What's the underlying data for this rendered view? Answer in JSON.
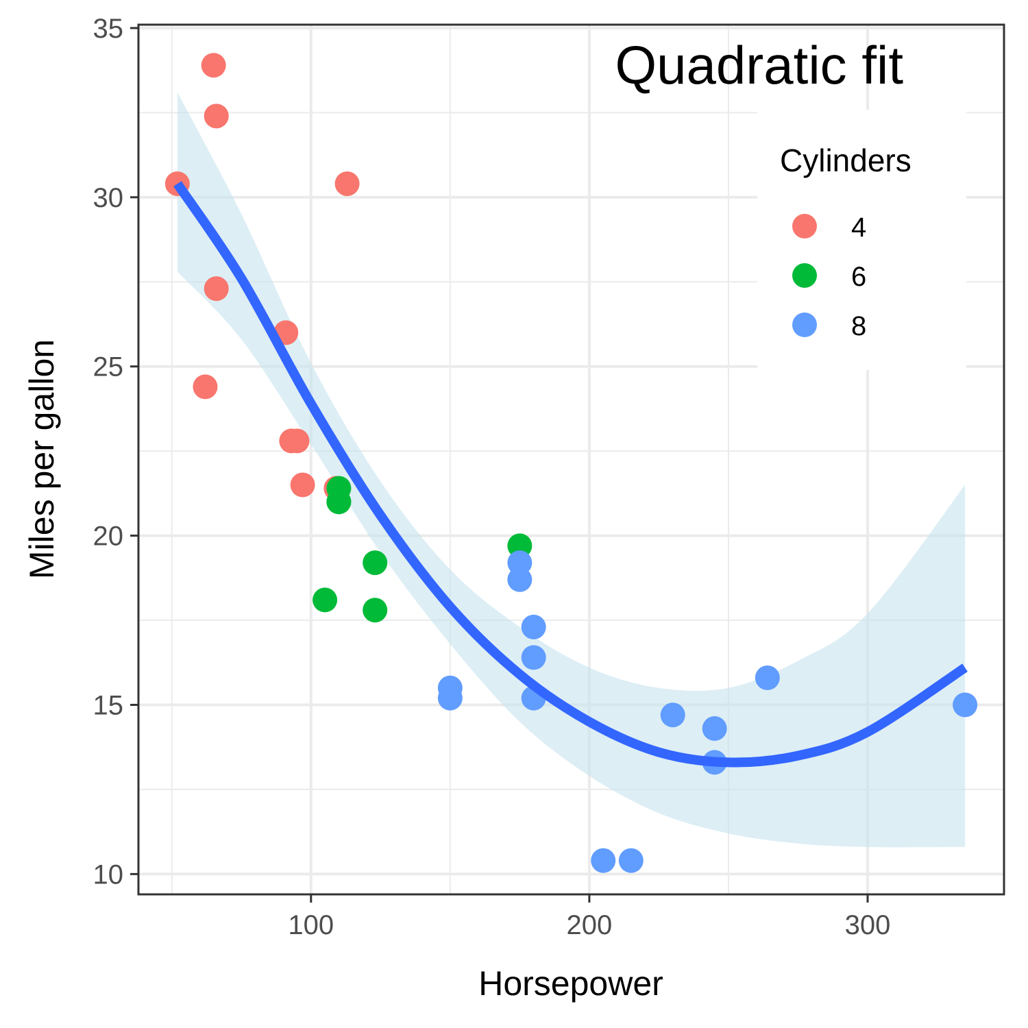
{
  "chart_data": {
    "type": "scatter",
    "title": "Quadratic fit",
    "xlabel": "Horsepower",
    "ylabel": "Miles per gallon",
    "xlim": [
      38,
      349
    ],
    "ylim": [
      9.4,
      35.1
    ],
    "xticks": [
      100,
      200,
      300
    ],
    "yticks": [
      10,
      15,
      20,
      25,
      30,
      35
    ],
    "grid": true,
    "legend": {
      "title": "Cylinders",
      "placement": "top-right inside",
      "entries": [
        {
          "label": "4",
          "color": "#F8766D"
        },
        {
          "label": "6",
          "color": "#00BA38"
        },
        {
          "label": "8",
          "color": "#619CFF"
        }
      ]
    },
    "series": [
      {
        "name": "4",
        "color": "#F8766D",
        "points": [
          {
            "x": 52,
            "y": 30.4
          },
          {
            "x": 65,
            "y": 33.9
          },
          {
            "x": 66,
            "y": 32.4
          },
          {
            "x": 66,
            "y": 27.3
          },
          {
            "x": 62,
            "y": 24.4
          },
          {
            "x": 91,
            "y": 26.0
          },
          {
            "x": 93,
            "y": 22.8
          },
          {
            "x": 95,
            "y": 22.8
          },
          {
            "x": 97,
            "y": 21.5
          },
          {
            "x": 109,
            "y": 21.4
          },
          {
            "x": 113,
            "y": 30.4
          }
        ]
      },
      {
        "name": "6",
        "color": "#00BA38",
        "points": [
          {
            "x": 105,
            "y": 18.1
          },
          {
            "x": 110,
            "y": 21.0
          },
          {
            "x": 110,
            "y": 21.0
          },
          {
            "x": 110,
            "y": 21.4
          },
          {
            "x": 123,
            "y": 19.2
          },
          {
            "x": 123,
            "y": 17.8
          },
          {
            "x": 175,
            "y": 19.7
          }
        ]
      },
      {
        "name": "8",
        "color": "#619CFF",
        "points": [
          {
            "x": 150,
            "y": 15.5
          },
          {
            "x": 150,
            "y": 15.2
          },
          {
            "x": 175,
            "y": 19.2
          },
          {
            "x": 175,
            "y": 18.7
          },
          {
            "x": 180,
            "y": 17.3
          },
          {
            "x": 180,
            "y": 16.4
          },
          {
            "x": 180,
            "y": 15.2
          },
          {
            "x": 205,
            "y": 10.4
          },
          {
            "x": 215,
            "y": 10.4
          },
          {
            "x": 230,
            "y": 14.7
          },
          {
            "x": 245,
            "y": 14.3
          },
          {
            "x": 245,
            "y": 13.3
          },
          {
            "x": 264,
            "y": 15.8
          },
          {
            "x": 335,
            "y": 15.0
          }
        ]
      }
    ],
    "fit": {
      "name": "quadratic fit",
      "color": "#3366FF",
      "band_color": "#C6E2EF",
      "points": [
        {
          "x": 52,
          "y": 30.4
        },
        {
          "x": 75,
          "y": 27.6
        },
        {
          "x": 100,
          "y": 23.9
        },
        {
          "x": 125,
          "y": 20.6
        },
        {
          "x": 150,
          "y": 17.9
        },
        {
          "x": 175,
          "y": 15.9
        },
        {
          "x": 200,
          "y": 14.5
        },
        {
          "x": 225,
          "y": 13.6
        },
        {
          "x": 250,
          "y": 13.3
        },
        {
          "x": 275,
          "y": 13.5
        },
        {
          "x": 300,
          "y": 14.2
        },
        {
          "x": 335,
          "y": 16.1
        }
      ],
      "band_upper": [
        {
          "x": 52,
          "y": 33.1
        },
        {
          "x": 75,
          "y": 29.5
        },
        {
          "x": 100,
          "y": 25.1
        },
        {
          "x": 125,
          "y": 21.6
        },
        {
          "x": 150,
          "y": 19.0
        },
        {
          "x": 175,
          "y": 17.3
        },
        {
          "x": 200,
          "y": 16.1
        },
        {
          "x": 225,
          "y": 15.5
        },
        {
          "x": 250,
          "y": 15.5
        },
        {
          "x": 275,
          "y": 16.3
        },
        {
          "x": 300,
          "y": 17.7
        },
        {
          "x": 335,
          "y": 21.5
        }
      ],
      "band_lower": [
        {
          "x": 52,
          "y": 27.8
        },
        {
          "x": 75,
          "y": 25.8
        },
        {
          "x": 100,
          "y": 22.7
        },
        {
          "x": 125,
          "y": 19.5
        },
        {
          "x": 150,
          "y": 16.8
        },
        {
          "x": 175,
          "y": 14.5
        },
        {
          "x": 200,
          "y": 12.9
        },
        {
          "x": 225,
          "y": 11.8
        },
        {
          "x": 250,
          "y": 11.2
        },
        {
          "x": 275,
          "y": 10.9
        },
        {
          "x": 300,
          "y": 10.8
        },
        {
          "x": 335,
          "y": 10.8
        }
      ]
    }
  }
}
